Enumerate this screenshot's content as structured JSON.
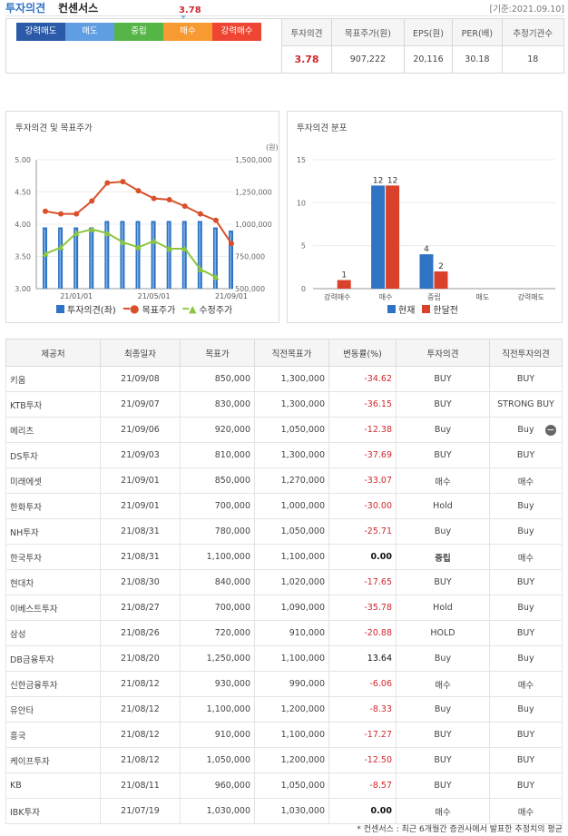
{
  "header": {
    "title_blue": "투자의견",
    "title_black": "컨센서스",
    "date": "[기준:2021.09.10]"
  },
  "opinion_scale": {
    "marker_value": "3.78",
    "segments": [
      {
        "label": "강력매도",
        "color": "#2a5aa8"
      },
      {
        "label": "매도",
        "color": "#5f9ee2"
      },
      {
        "label": "중립",
        "color": "#55b546"
      },
      {
        "label": "매수",
        "color": "#f79a31"
      },
      {
        "label": "강력매수",
        "color": "#ee4633"
      }
    ]
  },
  "summary": {
    "headers": [
      "투자의견",
      "목표주가(원)",
      "EPS(원)",
      "PER(배)",
      "추정기관수"
    ],
    "values": [
      "3.78",
      "907,222",
      "20,116",
      "30.18",
      "18"
    ]
  },
  "chart_data": [
    {
      "type": "bar+line",
      "title": "투자의견 및 목표주가",
      "y_left_ticks": [
        "5.00",
        "4.50",
        "4.00",
        "3.50",
        "3.00"
      ],
      "y_left_range": [
        3.0,
        5.0
      ],
      "y_right_label": "(원)",
      "y_right_ticks": [
        "1,500,000",
        "1,250,000",
        "1,000,000",
        "750,000",
        "500,000"
      ],
      "y_right_range": [
        500000,
        1500000
      ],
      "x_ticks": [
        "21/01/01",
        "21/05/01",
        "21/09/01"
      ],
      "series": [
        {
          "name": "투자의견(좌)",
          "color": "#2f73c4",
          "values": [
            3.95,
            3.95,
            3.95,
            3.95,
            4.05,
            4.05,
            4.05,
            4.05,
            4.05,
            4.05,
            4.05,
            3.95,
            3.9
          ]
        },
        {
          "name": "목표주가",
          "color": "#d9502b",
          "values": [
            1100000,
            1080000,
            1080000,
            1180000,
            1320000,
            1330000,
            1260000,
            1200000,
            1190000,
            1140000,
            1080000,
            1030000,
            850000
          ]
        },
        {
          "name": "수정주가",
          "color": "#8cc63f",
          "values": [
            770000,
            820000,
            930000,
            960000,
            930000,
            860000,
            820000,
            870000,
            810000,
            810000,
            650000,
            590000
          ]
        }
      ]
    },
    {
      "type": "bar",
      "title": "투자의견 분포",
      "categories": [
        "강력매수",
        "매수",
        "중립",
        "매도",
        "강력매도"
      ],
      "y_ticks": [
        "15",
        "10",
        "5",
        "0"
      ],
      "ylim": [
        0,
        15
      ],
      "series": [
        {
          "name": "현재",
          "color": "#2f73c4",
          "values": [
            0,
            12,
            4,
            0,
            0
          ]
        },
        {
          "name": "한달전",
          "color": "#d9412b",
          "values": [
            1,
            12,
            2,
            0,
            0
          ]
        }
      ],
      "data_labels": [
        "1",
        "12",
        "12",
        "4",
        "2"
      ]
    }
  ],
  "table": {
    "headers": [
      "제공처",
      "최종일자",
      "목표가",
      "직전목표가",
      "변동률(%)",
      "투자의견",
      "직전투자의견"
    ],
    "rows": [
      [
        "키움",
        "21/09/08",
        "850,000",
        "1,300,000",
        "-34.62",
        "BUY",
        "BUY"
      ],
      [
        "KTB투자",
        "21/09/07",
        "830,000",
        "1,300,000",
        "-36.15",
        "BUY",
        "STRONG BUY"
      ],
      [
        "메리츠",
        "21/09/06",
        "920,000",
        "1,050,000",
        "-12.38",
        "Buy",
        "Buy"
      ],
      [
        "DS투자",
        "21/09/03",
        "810,000",
        "1,300,000",
        "-37.69",
        "BUY",
        "BUY"
      ],
      [
        "미래에셋",
        "21/09/01",
        "850,000",
        "1,270,000",
        "-33.07",
        "매수",
        "매수"
      ],
      [
        "한화투자",
        "21/09/01",
        "700,000",
        "1,000,000",
        "-30.00",
        "Hold",
        "Buy"
      ],
      [
        "NH투자",
        "21/08/31",
        "780,000",
        "1,050,000",
        "-25.71",
        "Buy",
        "Buy"
      ],
      [
        "한국투자",
        "21/08/31",
        "1,100,000",
        "1,100,000",
        "0.00",
        "중립",
        "매수"
      ],
      [
        "현대차",
        "21/08/30",
        "840,000",
        "1,020,000",
        "-17.65",
        "BUY",
        "BUY"
      ],
      [
        "이베스트투자",
        "21/08/27",
        "700,000",
        "1,090,000",
        "-35.78",
        "Hold",
        "Buy"
      ],
      [
        "삼성",
        "21/08/26",
        "720,000",
        "910,000",
        "-20.88",
        "HOLD",
        "BUY"
      ],
      [
        "DB금융투자",
        "21/08/20",
        "1,250,000",
        "1,100,000",
        "13.64",
        "Buy",
        "Buy"
      ],
      [
        "신한금융투자",
        "21/08/12",
        "930,000",
        "990,000",
        "-6.06",
        "매수",
        "매수"
      ],
      [
        "유안타",
        "21/08/12",
        "1,100,000",
        "1,200,000",
        "-8.33",
        "Buy",
        "Buy"
      ],
      [
        "흥국",
        "21/08/12",
        "910,000",
        "1,100,000",
        "-17.27",
        "BUY",
        "BUY"
      ],
      [
        "케이프투자",
        "21/08/12",
        "1,050,000",
        "1,200,000",
        "-12.50",
        "BUY",
        "BUY"
      ],
      [
        "KB",
        "21/08/11",
        "960,000",
        "1,050,000",
        "-8.57",
        "BUY",
        "BUY"
      ],
      [
        "IBK투자",
        "21/07/19",
        "1,030,000",
        "1,030,000",
        "0.00",
        "매수",
        "매수"
      ]
    ]
  },
  "collapse_icon": "minus-circle-icon",
  "footnote": "* 컨센서스 : 최근 6개월간 증권사에서 발표한 추정치의 평균"
}
